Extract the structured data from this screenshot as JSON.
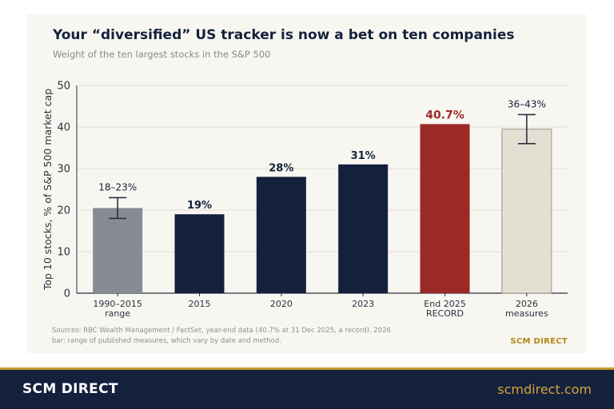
{
  "title": "Your “diversified” US tracker is now a bet on ten companies",
  "subtitle": "Weight of the ten largest stocks in the S&P 500",
  "footnote": "Sources: RBC Wealth Management / FactSet, year-end data (40.7% at 31 Dec 2025, a record). 2026 bar: range of published measures, which vary by date and method.",
  "card_brand": "SCM DIRECT",
  "footer": {
    "brand": "SCM DIRECT",
    "url": "scmdirect.com"
  },
  "colors": {
    "navy": "#14213d",
    "record_red": "#9b2a26",
    "range_gray": "#878c94",
    "estimate_beige": "#e3dfd3",
    "gold": "#c69a2e",
    "grid": "#e2dfd8"
  },
  "chart_data": {
    "type": "bar",
    "ylabel": "Top 10 stocks, % of S&P 500 market cap",
    "ylim": [
      0,
      50
    ],
    "yticks": [
      0,
      10,
      20,
      30,
      40,
      50
    ],
    "grid": true,
    "bars": [
      {
        "category": [
          "1990–2015",
          "range"
        ],
        "value": 20.5,
        "label": "18–23%",
        "error_range": [
          18,
          23
        ],
        "color": "#878c94",
        "label_style": "normal"
      },
      {
        "category": [
          "2015"
        ],
        "value": 19,
        "label": "19%",
        "color": "#14213d",
        "label_style": "bold"
      },
      {
        "category": [
          "2020"
        ],
        "value": 28,
        "label": "28%",
        "color": "#14213d",
        "label_style": "bold"
      },
      {
        "category": [
          "2023"
        ],
        "value": 31,
        "label": "31%",
        "color": "#14213d",
        "label_style": "bold"
      },
      {
        "category": [
          "End 2025",
          "RECORD"
        ],
        "value": 40.7,
        "label": "40.7%",
        "color": "#9b2a26",
        "label_style": "record"
      },
      {
        "category": [
          "2026",
          "measures"
        ],
        "value": 39.5,
        "label": "36–43%",
        "error_range": [
          36,
          43
        ],
        "color": "#e3dfd3",
        "label_style": "normal"
      }
    ]
  }
}
